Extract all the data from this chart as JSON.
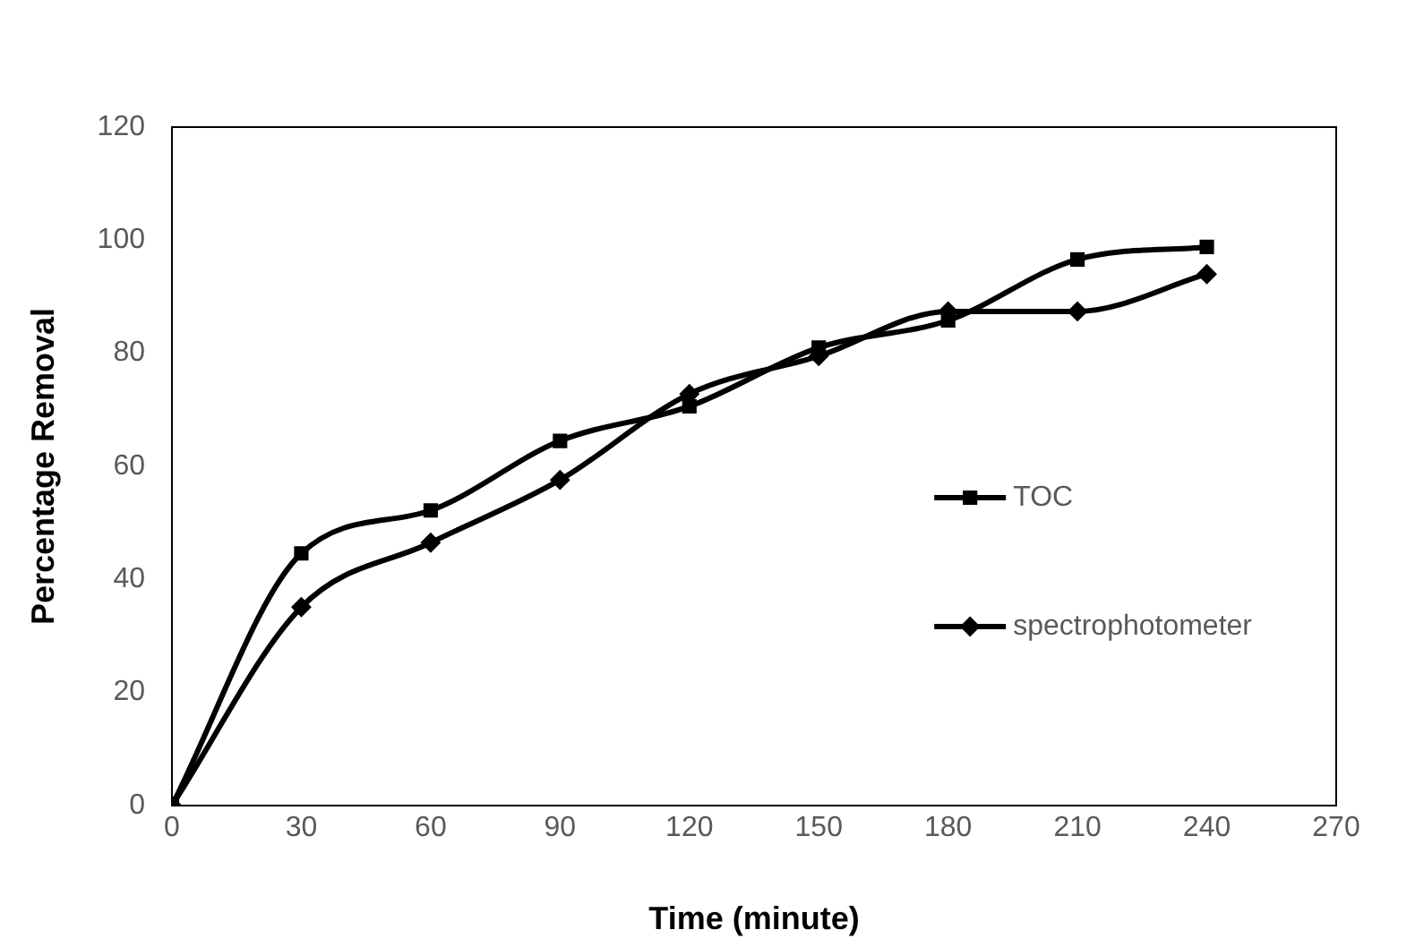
{
  "chart_data": {
    "type": "line",
    "xlabel": "Time (minute)",
    "ylabel": "Percentage Removal",
    "x": [
      0,
      30,
      60,
      90,
      120,
      150,
      180,
      210,
      240
    ],
    "series": [
      {
        "name": "TOC",
        "color": "#000000",
        "marker": "square",
        "values": [
          0,
          44.6,
          52.2,
          64.5,
          70.6,
          81,
          85.8,
          96.6,
          98.8
        ]
      },
      {
        "name": "spectrophotometer",
        "color": "#000000",
        "marker": "diamond",
        "values": [
          0,
          35.1,
          46.5,
          57.6,
          72.8,
          79.5,
          87.4,
          87.4,
          94
        ]
      }
    ],
    "xlim": [
      0,
      270
    ],
    "xticks": [
      0,
      30,
      60,
      90,
      120,
      150,
      180,
      210,
      240,
      270
    ],
    "ylim": [
      0,
      120
    ],
    "yticks": [
      0,
      20,
      40,
      60,
      80,
      100,
      120
    ],
    "grid": false,
    "legend": "bottom right",
    "line_style": "solid"
  }
}
